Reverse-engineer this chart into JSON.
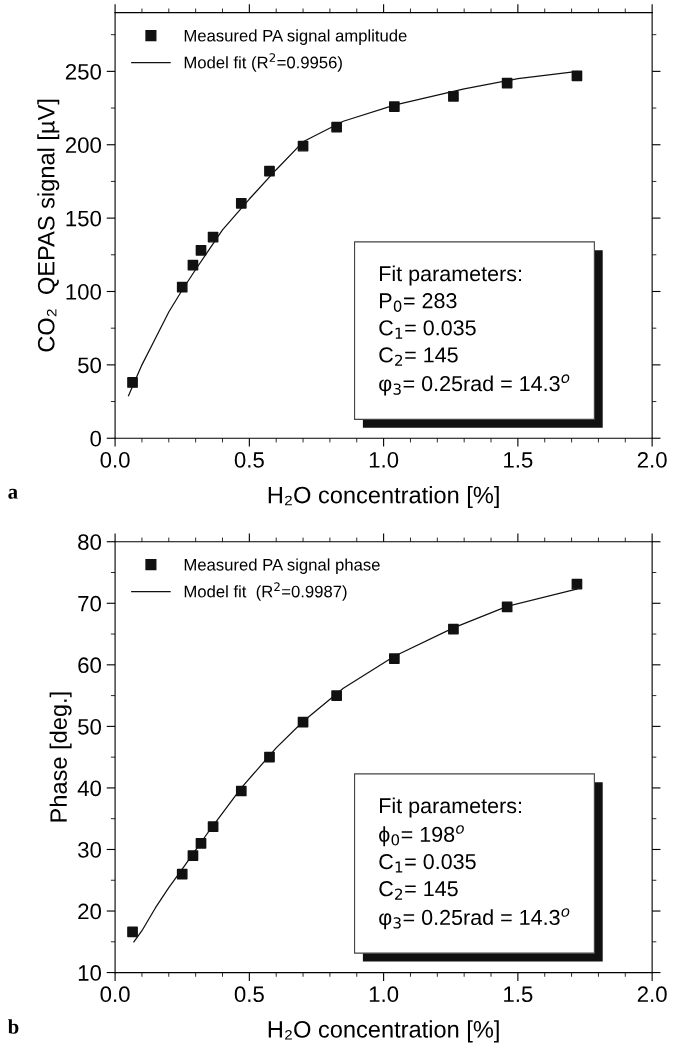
{
  "chart_data": [
    {
      "type": "scatter",
      "xlabel": "H₂O concentration [%]",
      "ylabel": "CO₂  QEPAS signal [µV]",
      "xlim": [
        0,
        2
      ],
      "xticks": [
        {
          "value": 0,
          "label": "0.0"
        },
        {
          "value": 0.5,
          "label": "0.5"
        },
        {
          "value": 1,
          "label": "1.0"
        },
        {
          "value": 1.5,
          "label": "1.5"
        },
        {
          "value": 2,
          "label": "2.0"
        }
      ],
      "ylim": [
        0,
        290
      ],
      "yticks": [
        0,
        50,
        100,
        150,
        200,
        250
      ],
      "legend": "top left",
      "annotations": [
        "a",
        "Fit parameters:\nP$_{0}$= 283\nC$_{1}$= 0.035\nC$_{2}$= 145\nφ$_{3}$= 0.25rad = 14.3$^{o}$"
      ],
      "x": [
        0.065,
        0.25,
        0.29,
        0.32,
        0.365,
        0.47,
        0.575,
        0.7,
        0.825,
        1.04,
        1.26,
        1.46,
        1.72
      ],
      "series": [
        {
          "name": "Measured PA signal amplitude",
          "marker": "square",
          "color": "#111111",
          "values": [
            38,
            103,
            118,
            128,
            137,
            160,
            182,
            199,
            212,
            226,
            233,
            242,
            247
          ]
        },
        {
          "name": "Model fit (R$^{2}$=0.9956)",
          "type": "line",
          "color": "#111111",
          "x": [
            0.05,
            0.1,
            0.15,
            0.2,
            0.25,
            0.3,
            0.4,
            0.5,
            0.6,
            0.7,
            0.85,
            1.04,
            1.3,
            1.5,
            1.72
          ],
          "values": [
            29,
            50,
            68,
            86,
            101,
            115,
            142,
            163,
            183,
            202,
            216,
            227,
            238,
            245,
            250
          ]
        }
      ]
    },
    {
      "type": "scatter",
      "xlabel": "H₂O concentration [%]",
      "ylabel": "Phase [deg.]",
      "xlim": [
        0,
        2
      ],
      "xticks": [
        {
          "value": 0,
          "label": "0.0"
        },
        {
          "value": 0.5,
          "label": "0.5"
        },
        {
          "value": 1,
          "label": "1.0"
        },
        {
          "value": 1.5,
          "label": "1.5"
        },
        {
          "value": 2,
          "label": "2.0"
        }
      ],
      "ylim": [
        10,
        80
      ],
      "yticks": [
        10,
        20,
        30,
        40,
        50,
        60,
        70,
        80
      ],
      "legend": "top left",
      "annotations": [
        "b",
        "Fit parameters:\nϕ$_{0}$= 198$^{o}$\nC$_{1}$= 0.035\nC$_{2}$= 145\nφ$_{3}$= 0.25rad = 14.3$^{o}$"
      ],
      "x": [
        0.065,
        0.25,
        0.29,
        0.32,
        0.365,
        0.47,
        0.575,
        0.7,
        0.825,
        1.04,
        1.26,
        1.46,
        1.72
      ],
      "series": [
        {
          "name": "Measured PA signal phase",
          "marker": "square",
          "color": "#111111",
          "values": [
            16.6,
            26,
            29,
            31,
            33.7,
            39.5,
            45,
            50.7,
            55,
            61,
            65.8,
            69.4,
            73.1
          ]
        },
        {
          "name": "Model fit  (R$^{2}$=0.9987)",
          "type": "line",
          "color": "#111111",
          "x": [
            0.07,
            0.1,
            0.15,
            0.2,
            0.25,
            0.35,
            0.47,
            0.6,
            0.7,
            0.85,
            1.04,
            1.26,
            1.46,
            1.72
          ],
          "values": [
            15,
            16.8,
            20.5,
            23.8,
            26.8,
            33,
            40,
            46.5,
            50.8,
            56.2,
            61.4,
            66,
            69.5,
            72.3
          ]
        }
      ]
    }
  ]
}
